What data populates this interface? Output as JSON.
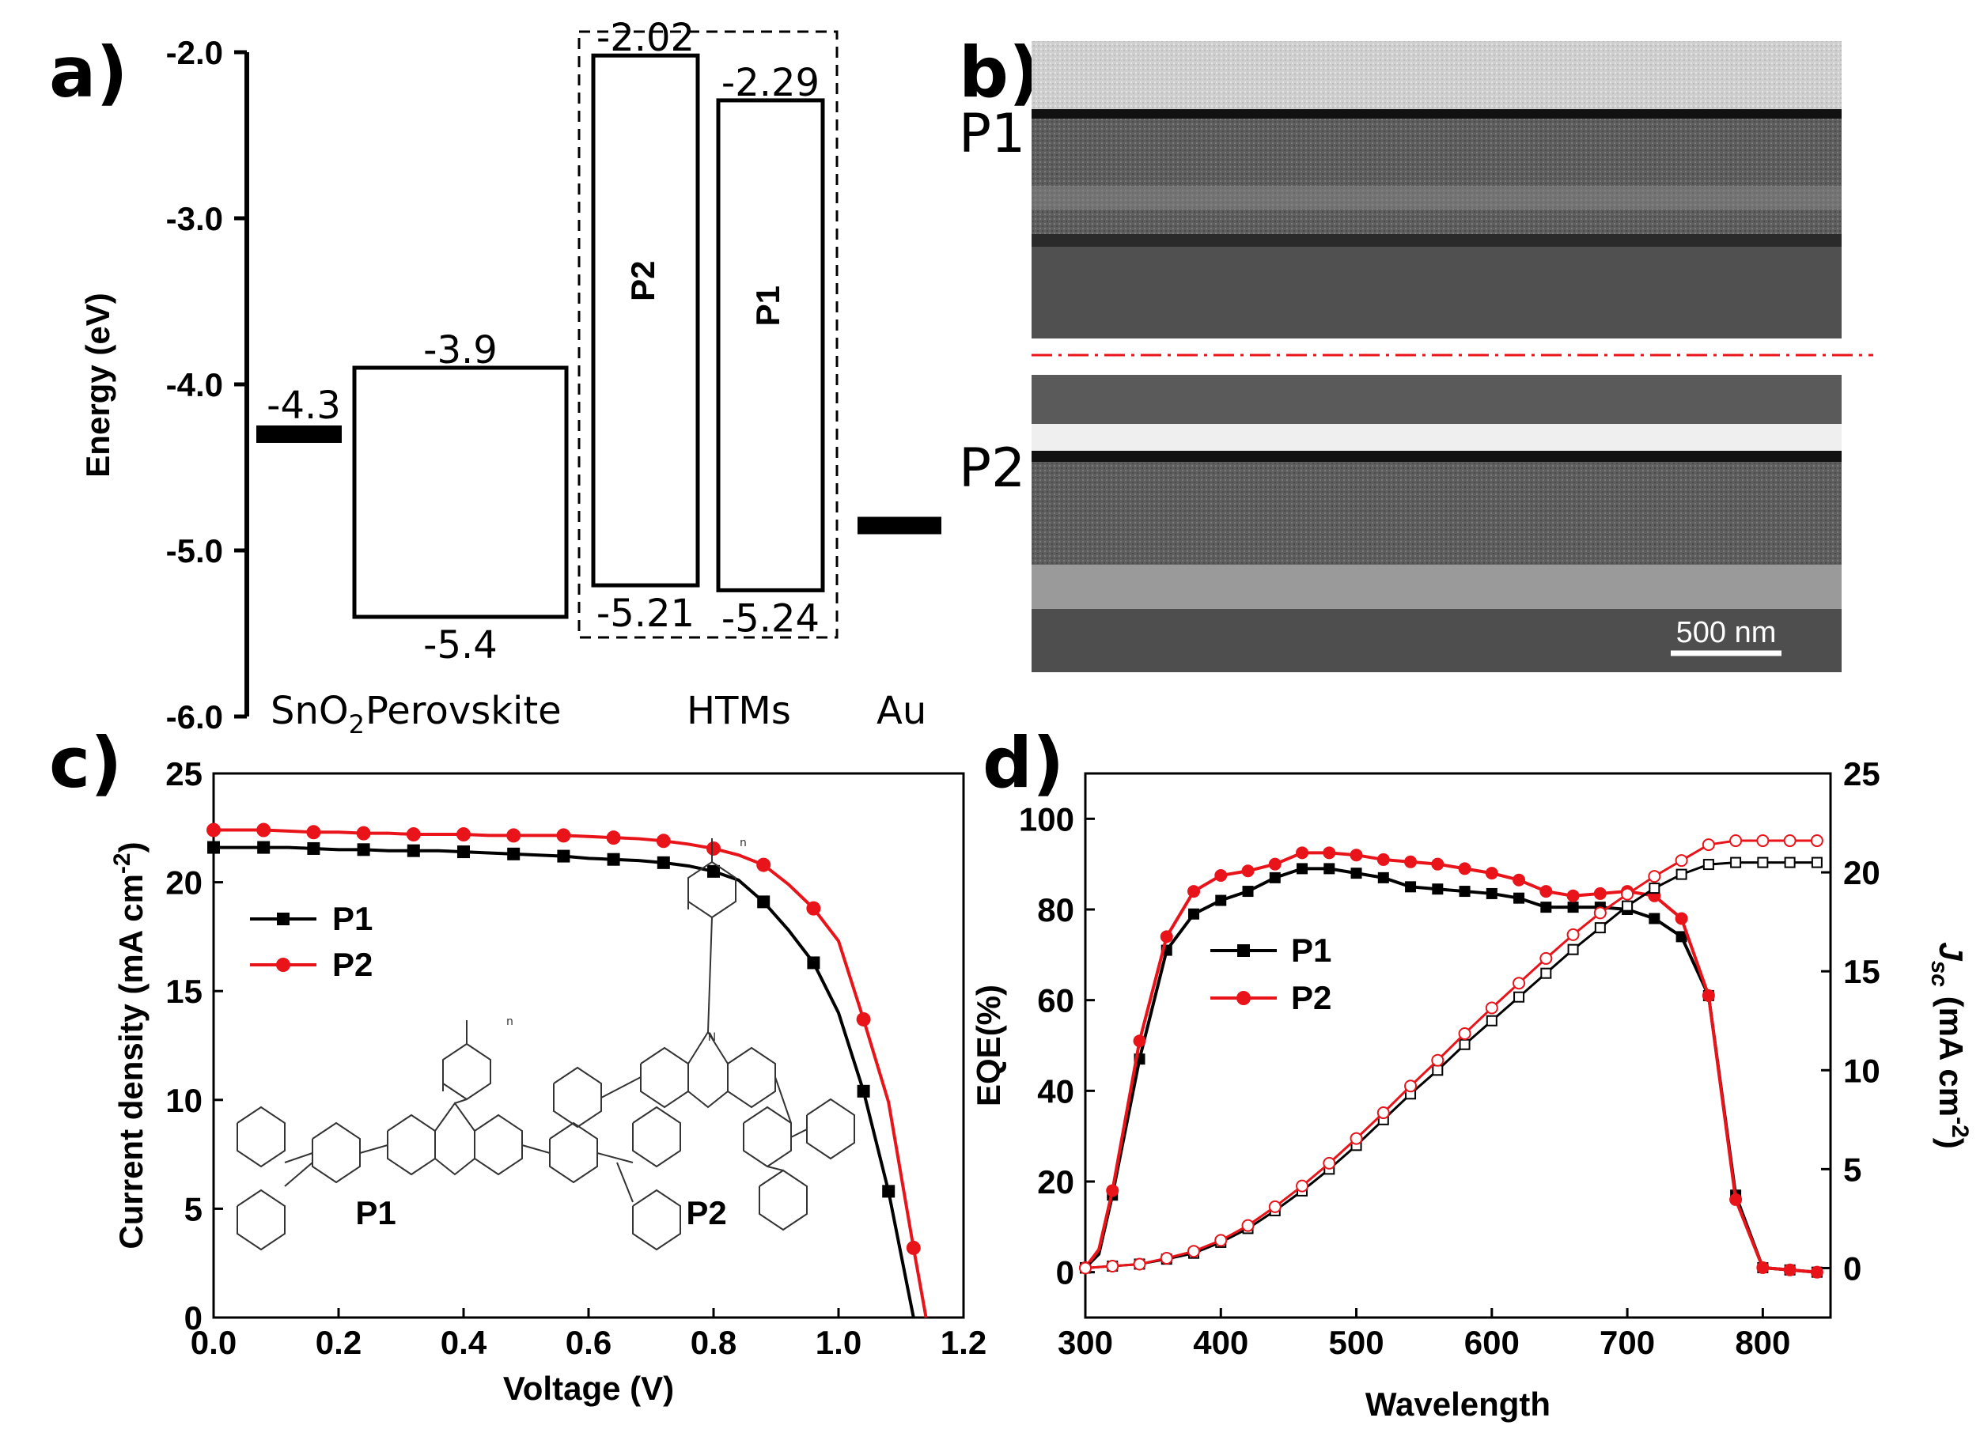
{
  "panels": {
    "a": "a)",
    "b": "b)",
    "c": "c)",
    "d": "d)"
  },
  "chart_data": [
    {
      "type": "energy_level_diagram",
      "panel": "a)",
      "ylabel": "Energy (eV)",
      "ylim": [
        -6.0,
        -2.0
      ],
      "yticks": [
        "-2.0",
        "-3.0",
        "-4.0",
        "-5.0",
        "-6.0"
      ],
      "levels": [
        {
          "name": "SnO2",
          "kind": "line",
          "value": -4.3,
          "label": "-4.3",
          "color": "#000000"
        },
        {
          "name": "Perovskite",
          "kind": "box",
          "top": -3.9,
          "bottom": -5.4,
          "top_label": "-3.9",
          "bottom_label": "-5.4"
        },
        {
          "name": "P2",
          "kind": "box",
          "top": -2.02,
          "bottom": -5.21,
          "top_label": "-2.02",
          "bottom_label": "-5.21"
        },
        {
          "name": "P1",
          "kind": "box",
          "top": -2.29,
          "bottom": -5.24,
          "top_label": "-2.29",
          "bottom_label": "-5.24"
        },
        {
          "name": "Au",
          "kind": "line",
          "value": -4.85,
          "color": "#000000"
        }
      ],
      "bottom_labels": {
        "sno2_main": "SnO",
        "sno2_sub": "2",
        "perovskite": "Perovskite",
        "htms": "HTMs",
        "au": "Au"
      }
    },
    {
      "type": "sem_image",
      "panel": "b)",
      "images": [
        {
          "label": "P1"
        },
        {
          "label": "P2"
        }
      ],
      "scalebar": "500 nm"
    },
    {
      "type": "line",
      "panel": "c)",
      "xlabel": "Voltage (V)",
      "ylabel": "Current density (mA cm",
      "ylabel_sup": "-2",
      "ylabel_tail": ")",
      "xlim": [
        0.0,
        1.2
      ],
      "ylim": [
        0,
        25
      ],
      "xticks": [
        "0.0",
        "0.2",
        "0.4",
        "0.6",
        "0.8",
        "1.0",
        "1.2"
      ],
      "yticks": [
        "0",
        "5",
        "10",
        "15",
        "20",
        "25"
      ],
      "legend": "upper-left",
      "series": [
        {
          "name": "P1",
          "color": "#000000",
          "marker": "square",
          "x": [
            0.0,
            0.04,
            0.08,
            0.12,
            0.16,
            0.2,
            0.24,
            0.28,
            0.32,
            0.36,
            0.4,
            0.44,
            0.48,
            0.52,
            0.56,
            0.6,
            0.64,
            0.68,
            0.72,
            0.76,
            0.8,
            0.84,
            0.88,
            0.92,
            0.96,
            1.0,
            1.04,
            1.08,
            1.12
          ],
          "y": [
            21.6,
            21.6,
            21.6,
            21.6,
            21.55,
            21.5,
            21.5,
            21.45,
            21.45,
            21.45,
            21.4,
            21.35,
            21.3,
            21.25,
            21.2,
            21.1,
            21.05,
            21.0,
            20.9,
            20.75,
            20.5,
            20.1,
            19.1,
            17.8,
            16.3,
            14.0,
            10.4,
            5.8,
            0.0
          ]
        },
        {
          "name": "P2",
          "color": "#e8141a",
          "marker": "circle",
          "x": [
            0.0,
            0.04,
            0.08,
            0.12,
            0.16,
            0.2,
            0.24,
            0.28,
            0.32,
            0.36,
            0.4,
            0.44,
            0.48,
            0.52,
            0.56,
            0.6,
            0.64,
            0.68,
            0.72,
            0.76,
            0.8,
            0.84,
            0.88,
            0.92,
            0.96,
            1.0,
            1.04,
            1.08,
            1.12,
            1.14
          ],
          "y": [
            22.4,
            22.4,
            22.4,
            22.35,
            22.3,
            22.3,
            22.25,
            22.25,
            22.2,
            22.2,
            22.2,
            22.15,
            22.15,
            22.15,
            22.15,
            22.1,
            22.05,
            22.0,
            21.9,
            21.75,
            21.55,
            21.25,
            20.8,
            19.9,
            18.8,
            17.3,
            13.7,
            9.9,
            3.2,
            0.0
          ]
        }
      ],
      "inset_molecules": [
        {
          "label": "P1",
          "color": "#000000"
        },
        {
          "label": "P2",
          "color": "#e8141a"
        }
      ],
      "inset_mol_text": {
        "n": "n",
        "N": "N"
      }
    },
    {
      "type": "line",
      "panel": "d)",
      "xlabel": "Wavelength",
      "ylabel": "EQE(%)",
      "y2label_main": "J",
      "y2label_sub": "sc",
      "y2label_unit": " (mA cm",
      "y2label_sup": "-2",
      "y2label_tail": ")",
      "xlim": [
        300,
        850
      ],
      "ylim": [
        -10,
        110
      ],
      "y2lim": [
        -2.5,
        25
      ],
      "xticks": [
        "300",
        "400",
        "500",
        "600",
        "700",
        "800"
      ],
      "yticks": [
        "0",
        "20",
        "40",
        "60",
        "80",
        "100"
      ],
      "y2ticks": [
        "0",
        "5",
        "10",
        "15",
        "20",
        "25"
      ],
      "legend": "center-left",
      "series": [
        {
          "name": "P1",
          "color": "#000000",
          "marker": "square",
          "axis": "left",
          "x": [
            300,
            310,
            320,
            340,
            360,
            380,
            400,
            420,
            440,
            460,
            480,
            500,
            520,
            540,
            560,
            580,
            600,
            620,
            640,
            660,
            680,
            700,
            720,
            740,
            760,
            780,
            800,
            820,
            840
          ],
          "y": [
            1,
            4,
            17,
            47,
            71,
            79,
            82,
            84,
            87,
            89,
            89,
            88,
            87,
            85,
            84.5,
            84,
            83.5,
            82.5,
            80.5,
            80.5,
            80.5,
            80,
            78,
            74,
            61,
            17,
            1,
            0.5,
            0
          ]
        },
        {
          "name": "P2",
          "color": "#e8141a",
          "marker": "circle",
          "axis": "left",
          "x": [
            300,
            310,
            320,
            340,
            360,
            380,
            400,
            420,
            440,
            460,
            480,
            500,
            520,
            540,
            560,
            580,
            600,
            620,
            640,
            660,
            680,
            700,
            720,
            740,
            760,
            780,
            800,
            820,
            840
          ],
          "y": [
            1,
            5,
            18,
            51,
            74,
            84,
            87.5,
            88.5,
            90,
            92.5,
            92.5,
            92,
            91,
            90.5,
            90,
            89,
            88,
            86.5,
            84,
            83,
            83.5,
            84,
            83,
            78,
            61,
            16,
            1,
            0.5,
            0
          ]
        },
        {
          "name": "P1 Jsc",
          "color": "#000000",
          "marker": "open-square",
          "axis": "right",
          "x": [
            300,
            320,
            340,
            360,
            380,
            400,
            420,
            440,
            460,
            480,
            500,
            520,
            540,
            560,
            580,
            600,
            620,
            640,
            660,
            680,
            700,
            720,
            740,
            760,
            780,
            800,
            820,
            840
          ],
          "y": [
            0,
            0.1,
            0.2,
            0.45,
            0.75,
            1.3,
            2.0,
            2.9,
            3.9,
            5.0,
            6.2,
            7.5,
            8.8,
            10.0,
            11.3,
            12.5,
            13.7,
            14.9,
            16.1,
            17.2,
            18.3,
            19.2,
            19.9,
            20.4,
            20.5,
            20.5,
            20.5,
            20.5
          ]
        },
        {
          "name": "P2 Jsc",
          "color": "#e8141a",
          "marker": "open-circle",
          "axis": "right",
          "x": [
            300,
            320,
            340,
            360,
            380,
            400,
            420,
            440,
            460,
            480,
            500,
            520,
            540,
            560,
            580,
            600,
            620,
            640,
            660,
            680,
            700,
            720,
            740,
            760,
            780,
            800,
            820,
            840
          ],
          "y": [
            0,
            0.1,
            0.2,
            0.5,
            0.85,
            1.4,
            2.15,
            3.1,
            4.15,
            5.3,
            6.55,
            7.85,
            9.2,
            10.5,
            11.85,
            13.15,
            14.4,
            15.65,
            16.85,
            17.95,
            18.9,
            19.8,
            20.6,
            21.4,
            21.6,
            21.6,
            21.6,
            21.6
          ]
        }
      ]
    }
  ]
}
